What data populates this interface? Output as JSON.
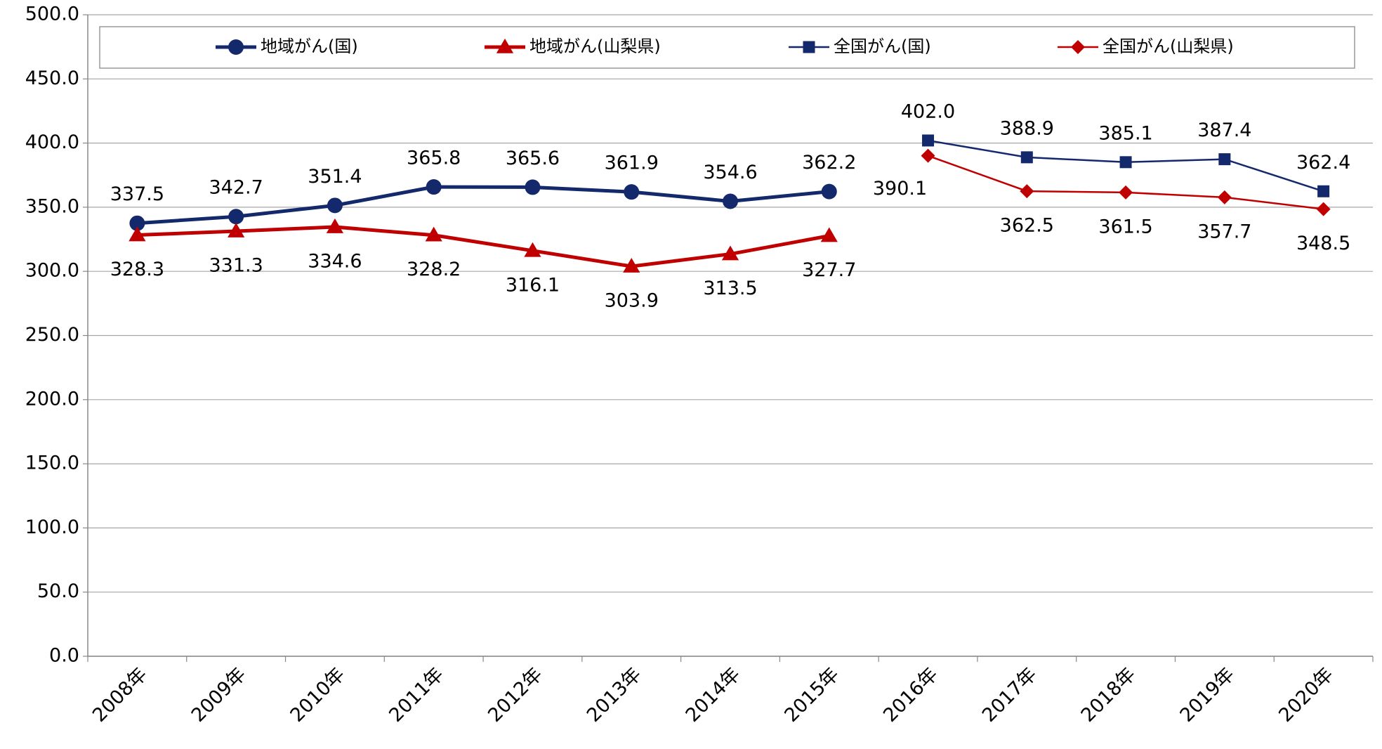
{
  "chart_data": {
    "type": "line",
    "categories": [
      "2008年",
      "2009年",
      "2010年",
      "2011年",
      "2012年",
      "2013年",
      "2014年",
      "2015年",
      "2016年",
      "2017年",
      "2018年",
      "2019年",
      "2020年"
    ],
    "series": [
      {
        "name": "地域がん(国)",
        "color": "#14296b",
        "marker": "circle",
        "line_width": 5,
        "values": [
          337.5,
          342.7,
          351.4,
          365.8,
          365.6,
          361.9,
          354.6,
          362.2,
          null,
          null,
          null,
          null,
          null
        ]
      },
      {
        "name": "地域がん(山梨県)",
        "color": "#c00000",
        "marker": "triangle",
        "line_width": 5,
        "values": [
          328.3,
          331.3,
          334.6,
          328.2,
          316.1,
          303.9,
          313.5,
          327.7,
          null,
          null,
          null,
          null,
          null
        ]
      },
      {
        "name": "全国がん(国)",
        "color": "#14296b",
        "marker": "square",
        "line_width": 2.5,
        "values": [
          null,
          null,
          null,
          null,
          null,
          null,
          null,
          null,
          402,
          388.9,
          385.1,
          387.4,
          362.4
        ],
        "value_labels": [
          null,
          null,
          null,
          null,
          null,
          null,
          null,
          null,
          "402.0",
          "388.9",
          "385.1",
          "387.4",
          "362.4"
        ]
      },
      {
        "name": "全国がん(山梨県)",
        "color": "#c00000",
        "marker": "diamond",
        "line_width": 2.5,
        "values": [
          null,
          null,
          null,
          null,
          null,
          null,
          null,
          null,
          390.1,
          362.5,
          361.5,
          357.7,
          348.5
        ]
      }
    ],
    "ylim": [
      0,
      500
    ],
    "yticks": [
      {
        "value": 0,
        "label": "0.0"
      },
      {
        "value": 50,
        "label": "50.0"
      },
      {
        "value": 100,
        "label": "100.0"
      },
      {
        "value": 150,
        "label": "150.0"
      },
      {
        "value": 200,
        "label": "200.0"
      },
      {
        "value": 250,
        "label": "250.0"
      },
      {
        "value": 300,
        "label": "300.0"
      },
      {
        "value": 350,
        "label": "350.0"
      },
      {
        "value": 400,
        "label": "400.0"
      },
      {
        "value": 450,
        "label": "450.0"
      },
      {
        "value": 500,
        "label": "500.0"
      }
    ],
    "grid": true
  }
}
